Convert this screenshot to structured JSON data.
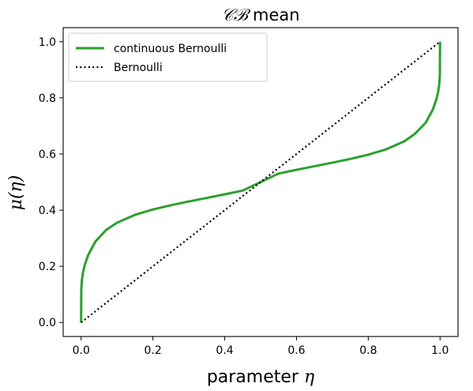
{
  "chart_data": {
    "type": "line",
    "title": {
      "symbol": "𝒞ℬ",
      "rest": " mean"
    },
    "xlabel": {
      "text": "parameter ",
      "symbol": "η"
    },
    "ylabel": {
      "text": "μ(η)"
    },
    "xlim": [
      -0.05,
      1.05
    ],
    "ylim": [
      -0.05,
      1.05
    ],
    "xticks": [
      "0.0",
      "0.2",
      "0.4",
      "0.6",
      "0.8",
      "1.0"
    ],
    "yticks": [
      "0.0",
      "0.2",
      "0.4",
      "0.6",
      "0.8",
      "1.0"
    ],
    "grid": false,
    "legend_position": "top-left",
    "series": [
      {
        "name": "continuous Bernoulli",
        "color": "#2ca02c",
        "style": "solid",
        "x": [
          0.0,
          0.0005,
          0.002,
          0.005,
          0.01,
          0.02,
          0.04,
          0.07,
          0.1,
          0.15,
          0.2,
          0.25,
          0.3,
          0.35,
          0.4,
          0.45,
          0.5,
          0.55,
          0.6,
          0.65,
          0.7,
          0.75,
          0.8,
          0.85,
          0.9,
          0.93,
          0.96,
          0.98,
          0.99,
          0.995,
          0.998,
          0.9995,
          1.0
        ],
        "y": [
          0.0,
          0.1156,
          0.1491,
          0.177,
          0.2044,
          0.2412,
          0.2886,
          0.3299,
          0.3551,
          0.3833,
          0.4025,
          0.4176,
          0.4309,
          0.4436,
          0.4564,
          0.4696,
          0.5,
          0.5304,
          0.5436,
          0.5564,
          0.5691,
          0.5824,
          0.5975,
          0.6167,
          0.6449,
          0.6718,
          0.7114,
          0.7588,
          0.7956,
          0.823,
          0.8509,
          0.8844,
          1.0
        ]
      },
      {
        "name": "Bernoulli",
        "color": "#000000",
        "style": "dotted",
        "x": [
          0.0,
          1.0
        ],
        "y": [
          0.0,
          1.0
        ]
      }
    ]
  }
}
